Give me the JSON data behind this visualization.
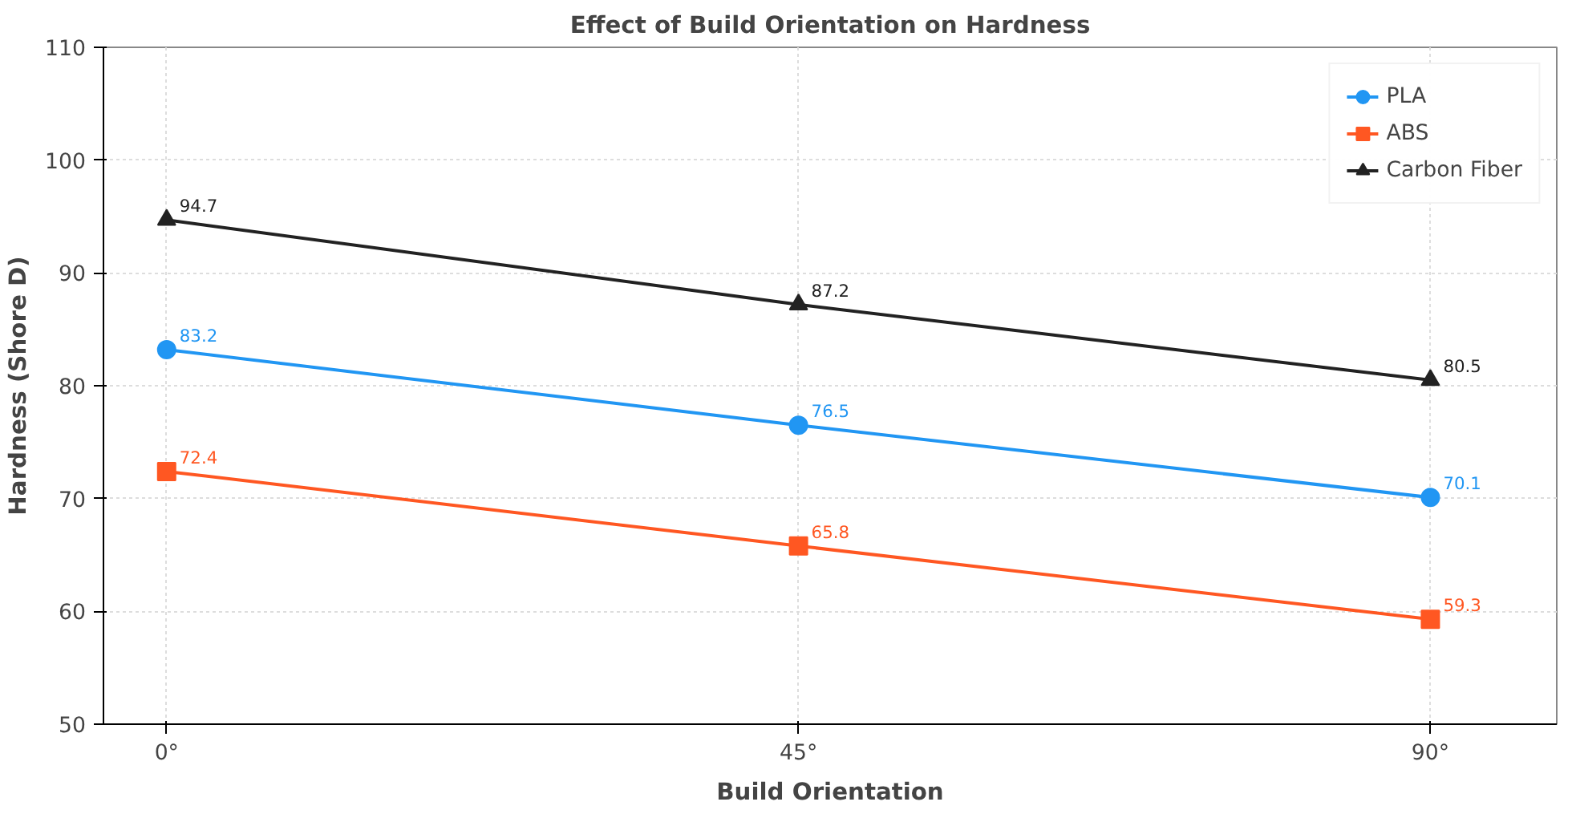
{
  "chart_data": {
    "type": "line",
    "title": "Effect of Build Orientation on Hardness",
    "xlabel": "Build Orientation",
    "ylabel": "Hardness (Shore D)",
    "categories": [
      "0°",
      "45°",
      "90°"
    ],
    "series": [
      {
        "name": "PLA",
        "color": "#2196f3",
        "marker": "circle",
        "values": [
          83.2,
          76.5,
          70.1
        ]
      },
      {
        "name": "ABS",
        "color": "#ff5722",
        "marker": "square",
        "values": [
          72.4,
          65.8,
          59.3
        ]
      },
      {
        "name": "Carbon Fiber",
        "color": "#222222",
        "marker": "triangle",
        "values": [
          94.7,
          87.2,
          80.5
        ]
      }
    ],
    "ylim": [
      50,
      110
    ],
    "yticks": [
      50,
      60,
      70,
      80,
      90,
      100,
      110
    ],
    "grid": true,
    "legend": "top right",
    "data_labels": true,
    "line_style": "solid"
  }
}
